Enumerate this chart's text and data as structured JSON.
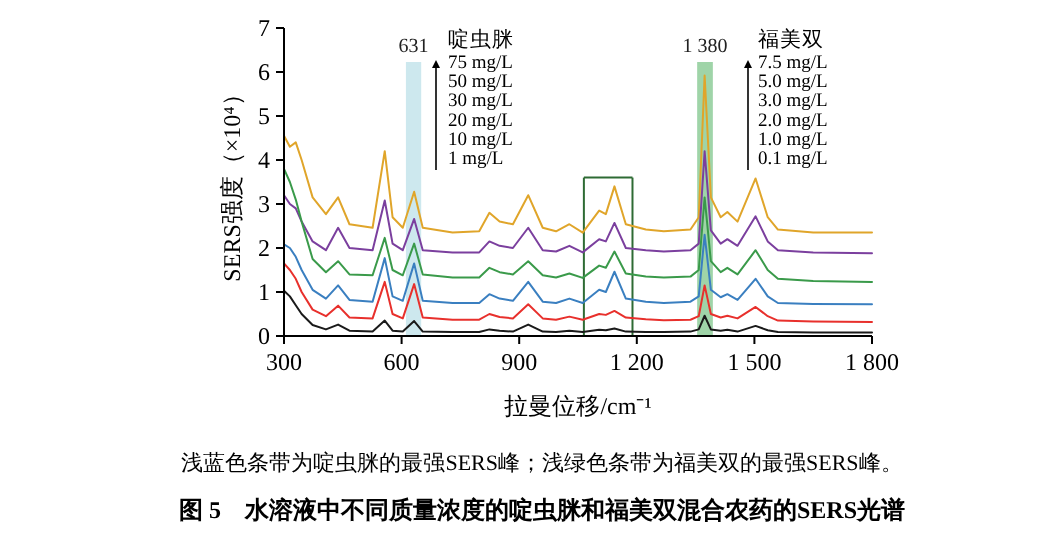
{
  "chart_data": {
    "type": "line",
    "title": "图 5　水溶液中不同质量浓度的啶虫脒和福美双混合农药的SERS光谱",
    "xlabel": "拉曼位移/cm⁻¹",
    "ylabel": "SERS强度（×10⁴）",
    "annotations": [
      "啶虫脒",
      "75 mg/L",
      "50 mg/L",
      "30 mg/L",
      "20 mg/L",
      "10 mg/L",
      "1 mg/L",
      "福美双",
      "7.5 mg/L",
      "5.0 mg/L",
      "3.0 mg/L",
      "2.0 mg/L",
      "1.0 mg/L",
      "0.1 mg/L",
      "浅蓝色条带为啶虫脒的最强SERS峰；浅绿色条带为福美双的最强SERS峰。"
    ],
    "x": [
      300,
      315,
      330,
      345,
      373,
      407,
      438,
      467,
      526,
      557,
      577,
      603,
      632,
      654,
      730,
      798,
      824,
      850,
      884,
      923,
      960,
      994,
      1028,
      1062,
      1104,
      1121,
      1143,
      1172,
      1223,
      1269,
      1337,
      1358,
      1373,
      1389,
      1414,
      1431,
      1457,
      1503,
      1534,
      1560,
      1650,
      1800
    ],
    "series": [
      {
        "color": "#e0a52a",
        "values": [
          4.55,
          4.3,
          4.4,
          4.0,
          3.15,
          2.77,
          3.15,
          2.54,
          2.46,
          4.2,
          2.7,
          2.46,
          3.28,
          2.46,
          2.35,
          2.38,
          2.8,
          2.6,
          2.54,
          3.2,
          2.46,
          2.38,
          2.54,
          2.35,
          2.85,
          2.77,
          3.4,
          2.54,
          2.42,
          2.38,
          2.42,
          2.7,
          5.92,
          3.15,
          2.7,
          2.82,
          2.6,
          3.58,
          2.7,
          2.42,
          2.35,
          2.35
        ]
      },
      {
        "color": "#7b3f9e",
        "values": [
          3.2,
          3.0,
          2.9,
          2.6,
          2.15,
          1.95,
          2.46,
          2.0,
          1.95,
          3.08,
          2.1,
          1.95,
          2.66,
          1.95,
          1.9,
          1.9,
          2.15,
          2.05,
          2.0,
          2.46,
          1.95,
          1.92,
          2.05,
          1.9,
          2.2,
          2.15,
          2.57,
          2.0,
          1.95,
          1.92,
          1.95,
          2.1,
          4.2,
          2.4,
          2.1,
          2.2,
          2.05,
          2.72,
          2.15,
          1.95,
          1.9,
          1.88
        ]
      },
      {
        "color": "#3a9a4a",
        "values": [
          3.8,
          3.5,
          3.1,
          2.6,
          1.75,
          1.45,
          1.7,
          1.4,
          1.38,
          2.23,
          1.5,
          1.38,
          2.1,
          1.4,
          1.33,
          1.33,
          1.55,
          1.45,
          1.4,
          1.7,
          1.38,
          1.33,
          1.42,
          1.32,
          1.6,
          1.55,
          1.92,
          1.42,
          1.35,
          1.33,
          1.35,
          1.5,
          3.15,
          1.7,
          1.45,
          1.55,
          1.4,
          1.95,
          1.5,
          1.3,
          1.25,
          1.23
        ]
      },
      {
        "color": "#3a7fc0",
        "values": [
          2.08,
          2.0,
          1.8,
          1.5,
          1.05,
          0.85,
          1.15,
          0.82,
          0.78,
          1.77,
          0.9,
          0.8,
          1.65,
          0.8,
          0.75,
          0.75,
          0.95,
          0.85,
          0.8,
          1.23,
          0.78,
          0.75,
          0.85,
          0.75,
          1.05,
          1.0,
          1.46,
          0.85,
          0.78,
          0.75,
          0.78,
          0.9,
          2.3,
          1.05,
          0.88,
          0.95,
          0.82,
          1.3,
          0.9,
          0.75,
          0.73,
          0.72
        ]
      },
      {
        "color": "#e8302c",
        "values": [
          1.65,
          1.5,
          1.3,
          1.0,
          0.6,
          0.45,
          0.69,
          0.42,
          0.4,
          1.23,
          0.5,
          0.4,
          1.18,
          0.42,
          0.37,
          0.37,
          0.5,
          0.43,
          0.4,
          0.72,
          0.4,
          0.37,
          0.44,
          0.37,
          0.5,
          0.48,
          0.57,
          0.42,
          0.38,
          0.36,
          0.37,
          0.45,
          1.15,
          0.5,
          0.42,
          0.46,
          0.4,
          0.66,
          0.45,
          0.35,
          0.33,
          0.32
        ]
      },
      {
        "color": "#1a1a1a",
        "values": [
          1.03,
          0.9,
          0.7,
          0.5,
          0.25,
          0.15,
          0.26,
          0.12,
          0.1,
          0.35,
          0.12,
          0.1,
          0.34,
          0.1,
          0.09,
          0.09,
          0.15,
          0.12,
          0.1,
          0.26,
          0.1,
          0.09,
          0.12,
          0.09,
          0.14,
          0.13,
          0.17,
          0.1,
          0.09,
          0.09,
          0.1,
          0.15,
          0.46,
          0.15,
          0.12,
          0.14,
          0.1,
          0.23,
          0.13,
          0.09,
          0.08,
          0.08
        ]
      }
    ],
    "xlim": [
      300,
      1800
    ],
    "ylim": [
      0,
      7
    ],
    "xticks": [
      300,
      600,
      900,
      {
        "value": 1200,
        "label": "1 200"
      },
      {
        "value": 1500,
        "label": "1 500"
      },
      {
        "value": 1800,
        "label": "1 800"
      }
    ],
    "yticks": [
      0,
      1,
      2,
      3,
      4,
      5,
      6,
      7
    ],
    "bands": [
      {
        "axis": "x",
        "from": 611,
        "to": 650,
        "label": "631",
        "color": "#cde8ee"
      },
      {
        "axis": "x",
        "from": 1354,
        "to": 1394,
        "label": "1 380",
        "color": "#9fd4a8"
      }
    ]
  }
}
